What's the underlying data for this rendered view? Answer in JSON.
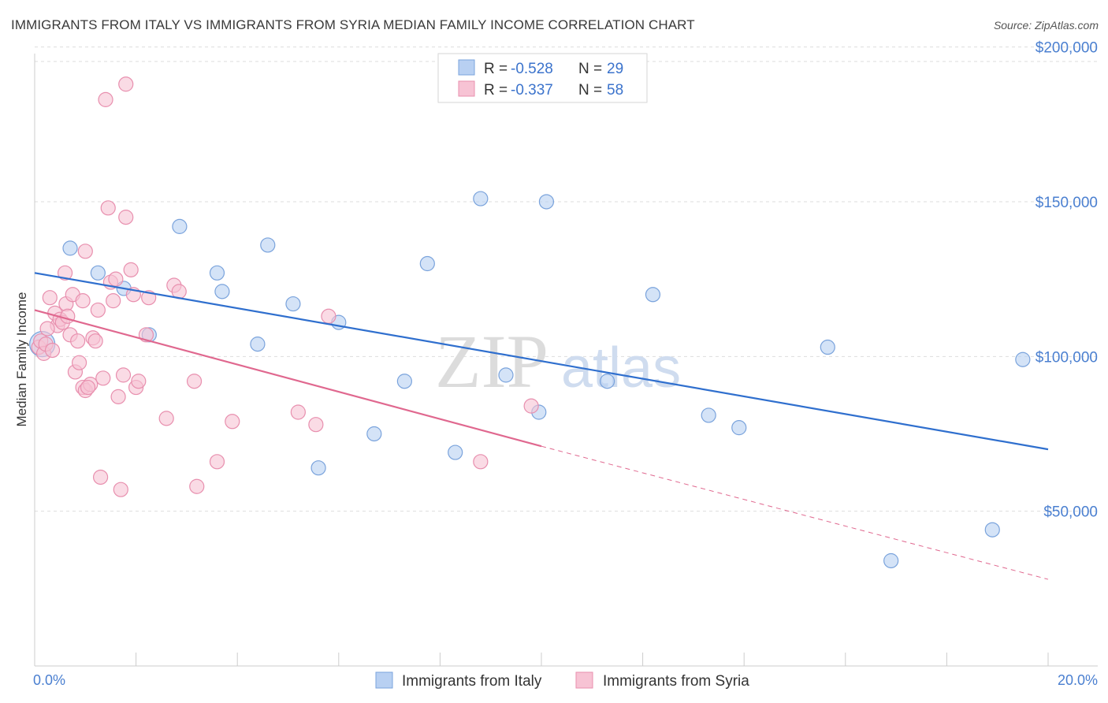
{
  "title": "IMMIGRANTS FROM ITALY VS IMMIGRANTS FROM SYRIA MEDIAN FAMILY INCOME CORRELATION CHART",
  "source": "Source: ZipAtlas.com",
  "watermark": {
    "zip": "ZIP",
    "atlas": "atlas"
  },
  "colors": {
    "italy_fill": "#b8d0f2",
    "italy_stroke": "#7aa3dc",
    "italy_line": "#2f6fce",
    "syria_fill": "#f7c3d4",
    "syria_stroke": "#e88fae",
    "syria_line": "#e0688f",
    "axis_text": "#4a7fd0",
    "grid": "#dddddd"
  },
  "legend": {
    "rows": [
      {
        "r_label": "R =",
        "r_value": "-0.528",
        "n_label": "N =",
        "n_value": "29"
      },
      {
        "r_label": "R =",
        "r_value": "-0.337",
        "n_label": "N =",
        "n_value": "58"
      }
    ]
  },
  "chart_data": {
    "type": "scatter",
    "ylabel": "Median Family Income",
    "xlabel": "",
    "x_tick_labels": [
      "0.0%",
      "20.0%"
    ],
    "y_tick_labels": [
      "$200,000",
      "$150,000",
      "$100,000",
      "$50,000"
    ],
    "xlim": [
      0,
      20
    ],
    "ylim": [
      0,
      205000
    ],
    "y_ticks": [
      200000,
      150000,
      100000,
      50000
    ],
    "grid": true,
    "legend_position": "top-center",
    "series": [
      {
        "name": "Immigrants from Italy",
        "color": "#7aa3dc",
        "points": [
          [
            0.15,
            104000
          ],
          [
            0.7,
            135000
          ],
          [
            1.25,
            127000
          ],
          [
            1.76,
            122000
          ],
          [
            2.26,
            107000
          ],
          [
            2.86,
            142000
          ],
          [
            3.6,
            127000
          ],
          [
            3.7,
            121000
          ],
          [
            4.4,
            104000
          ],
          [
            4.6,
            136000
          ],
          [
            5.1,
            117000
          ],
          [
            5.6,
            64000
          ],
          [
            6.0,
            111000
          ],
          [
            6.7,
            75000
          ],
          [
            7.3,
            92000
          ],
          [
            7.75,
            130000
          ],
          [
            8.3,
            69000
          ],
          [
            8.8,
            151000
          ],
          [
            9.3,
            94000
          ],
          [
            9.95,
            82000
          ],
          [
            10.1,
            150000
          ],
          [
            11.3,
            92000
          ],
          [
            12.2,
            120000
          ],
          [
            13.3,
            81000
          ],
          [
            13.9,
            77000
          ],
          [
            15.65,
            103000
          ],
          [
            16.9,
            34000
          ],
          [
            18.9,
            44000
          ],
          [
            19.5,
            99000
          ]
        ],
        "trend": {
          "x": [
            0,
            20
          ],
          "y": [
            127000,
            70000
          ],
          "style": "solid"
        }
      },
      {
        "name": "Immigrants from Syria",
        "color": "#e88fae",
        "points": [
          [
            0.08,
            103000
          ],
          [
            0.12,
            105000
          ],
          [
            0.18,
            101000
          ],
          [
            0.22,
            104000
          ],
          [
            0.3,
            119000
          ],
          [
            0.35,
            102000
          ],
          [
            0.4,
            114000
          ],
          [
            0.45,
            110000
          ],
          [
            0.5,
            112000
          ],
          [
            0.55,
            111000
          ],
          [
            0.6,
            127000
          ],
          [
            0.62,
            117000
          ],
          [
            0.7,
            107000
          ],
          [
            0.75,
            120000
          ],
          [
            0.8,
            95000
          ],
          [
            0.85,
            105000
          ],
          [
            0.88,
            98000
          ],
          [
            0.95,
            118000
          ],
          [
            1.0,
            134000
          ],
          [
            0.95,
            90000
          ],
          [
            1.0,
            89000
          ],
          [
            1.1,
            91000
          ],
          [
            1.15,
            106000
          ],
          [
            1.2,
            105000
          ],
          [
            1.25,
            115000
          ],
          [
            1.3,
            61000
          ],
          [
            1.35,
            93000
          ],
          [
            1.4,
            183000
          ],
          [
            1.45,
            148000
          ],
          [
            1.5,
            124000
          ],
          [
            1.55,
            118000
          ],
          [
            1.6,
            125000
          ],
          [
            1.65,
            87000
          ],
          [
            1.7,
            57000
          ],
          [
            1.75,
            94000
          ],
          [
            1.8,
            145000
          ],
          [
            1.8,
            188000
          ],
          [
            1.9,
            128000
          ],
          [
            1.95,
            120000
          ],
          [
            2.0,
            90000
          ],
          [
            2.05,
            92000
          ],
          [
            2.2,
            107000
          ],
          [
            2.25,
            119000
          ],
          [
            2.6,
            80000
          ],
          [
            2.75,
            123000
          ],
          [
            2.85,
            121000
          ],
          [
            3.15,
            92000
          ],
          [
            3.2,
            58000
          ],
          [
            3.6,
            66000
          ],
          [
            3.9,
            79000
          ],
          [
            5.2,
            82000
          ],
          [
            5.55,
            78000
          ],
          [
            5.8,
            113000
          ],
          [
            8.8,
            66000
          ],
          [
            9.8,
            84000
          ],
          [
            0.25,
            109000
          ],
          [
            0.65,
            113000
          ],
          [
            1.05,
            90000
          ]
        ],
        "trend": {
          "x": [
            0,
            10
          ],
          "y": [
            115000,
            71000
          ],
          "style": "solid"
        },
        "trend_extension": {
          "x": [
            10,
            20
          ],
          "y": [
            71000,
            28000
          ],
          "style": "dashed"
        }
      }
    ]
  }
}
